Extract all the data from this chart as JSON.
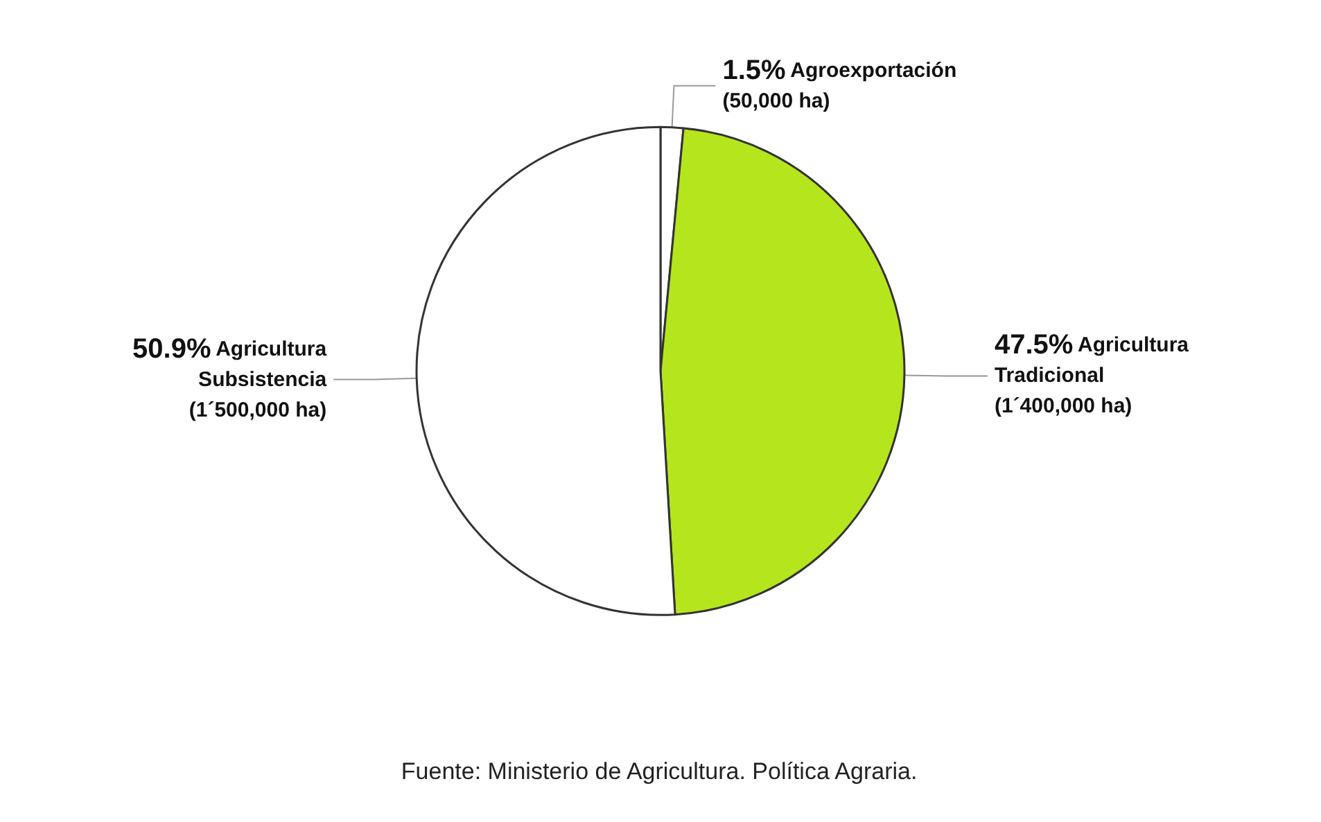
{
  "chart_data": {
    "type": "pie",
    "categories": [
      "Agroexportación\n(50,000 ha)",
      "Agricultura\nTradicional\n(1´400,000 ha)",
      "Agricultura\nSubsistencia\n(1´500,000 ha)"
    ],
    "values": [
      1.5,
      47.5,
      50.9
    ],
    "value_labels": [
      "1.5%",
      "47.5%",
      "50.9%"
    ],
    "colors": [
      "#ffffff",
      "#b5e61d",
      "#ffffff"
    ],
    "legend": false,
    "annotations": [
      "Fuente: Ministerio de Agricultura. Política Agraria."
    ]
  }
}
